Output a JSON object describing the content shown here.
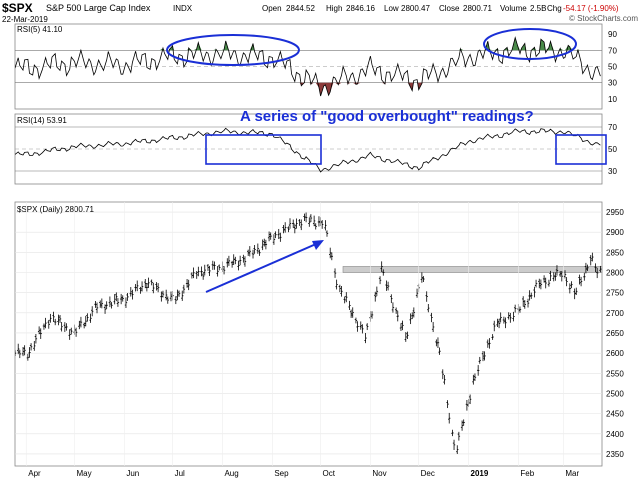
{
  "header": {
    "symbol": "$SPX",
    "name": "S&P 500 Large Cap Index",
    "exchange": "INDX",
    "date": "22-Mar-2019",
    "open_label": "Open",
    "open": "2844.52",
    "high_label": "High",
    "high": "2846.16",
    "low_label": "Low",
    "low": "2800.47",
    "close_label": "Close",
    "close": "2800.71",
    "volume_label": "Volume",
    "volume": "2.5B",
    "chg_label": "Chg",
    "chg": "-54.17 (-1.90%)",
    "watermark": "© StockCharts.com"
  },
  "annotation": "A series of \"good overbought\" readings?",
  "colors": {
    "price_bars": "#000000",
    "rsi_line": "#000000",
    "overbought_fill": "#4a8a4a",
    "oversold_fill": "#8b3a3a",
    "annotation_blue": "#1a2fd6",
    "resistance_band": "#cccccc",
    "grid": "#e3e3e3"
  },
  "chart_data": [
    {
      "type": "line",
      "panel": "RSI(5)",
      "label": "RSI(5)",
      "last_value": "41.10",
      "y_ticks": [
        10,
        30,
        50,
        70,
        90
      ],
      "ylim": [
        0,
        100
      ],
      "reference_lines": [
        30,
        50,
        70
      ],
      "overbought_at": 70,
      "oversold_at": 30,
      "x": [
        "2018-04",
        "2018-05",
        "2018-06",
        "2018-07",
        "2018-08",
        "2018-09",
        "2018-10",
        "2018-11",
        "2018-12",
        "2019-01",
        "2019-02",
        "2019-03",
        "2019-03-22"
      ],
      "values": [
        48,
        55,
        52,
        63,
        66,
        61,
        24,
        47,
        32,
        62,
        71,
        70,
        41
      ]
    },
    {
      "type": "line",
      "panel": "RSI(14)",
      "label": "RSI(14)",
      "last_value": "53.91",
      "y_ticks": [
        30,
        50,
        70
      ],
      "ylim": [
        20,
        80
      ],
      "reference_lines": [
        30,
        50,
        70
      ],
      "x": [
        "2018-04",
        "2018-05",
        "2018-06",
        "2018-07",
        "2018-08",
        "2018-09",
        "2018-10",
        "2018-11",
        "2018-12",
        "2019-01",
        "2019-02",
        "2019-03",
        "2019-03-22"
      ],
      "values": [
        45,
        52,
        55,
        60,
        66,
        64,
        31,
        44,
        33,
        57,
        66,
        66,
        54
      ]
    },
    {
      "type": "ohlc",
      "panel": "price",
      "label": "$SPX (Daily)",
      "last_value": "2800.71",
      "y_ticks": [
        2350,
        2400,
        2450,
        2500,
        2550,
        2600,
        2650,
        2700,
        2750,
        2800,
        2850,
        2900,
        2950
      ],
      "ylim": [
        2330,
        2960
      ],
      "x_ticks": [
        "Apr",
        "May",
        "Jun",
        "Jul",
        "Aug",
        "Sep",
        "Oct",
        "Nov",
        "Dec",
        "2019",
        "Feb",
        "Mar"
      ],
      "resistance_band": [
        2800,
        2815
      ],
      "x": [
        "2018-04-02",
        "2018-04-16",
        "2018-05-01",
        "2018-05-15",
        "2018-06-01",
        "2018-06-15",
        "2018-07-02",
        "2018-07-16",
        "2018-08-01",
        "2018-08-15",
        "2018-09-04",
        "2018-09-20",
        "2018-10-03",
        "2018-10-12",
        "2018-10-29",
        "2018-11-08",
        "2018-11-23",
        "2018-12-03",
        "2018-12-14",
        "2018-12-24",
        "2019-01-04",
        "2019-01-18",
        "2019-02-01",
        "2019-02-15",
        "2019-03-01",
        "2019-03-08",
        "2019-03-18",
        "2019-03-22"
      ],
      "close": [
        2600,
        2690,
        2650,
        2715,
        2735,
        2775,
        2730,
        2800,
        2815,
        2835,
        2895,
        2930,
        2925,
        2765,
        2640,
        2805,
        2635,
        2790,
        2600,
        2350,
        2530,
        2670,
        2705,
        2775,
        2800,
        2745,
        2835,
        2801
      ]
    }
  ],
  "axis_labels": {
    "rsi5": [
      "90",
      "70",
      "50",
      "30",
      "10"
    ],
    "rsi14": [
      "70",
      "50",
      "30"
    ],
    "price": [
      "2950",
      "2900",
      "2850",
      "2800",
      "2750",
      "2700",
      "2650",
      "2600",
      "2550",
      "2500",
      "2450",
      "2400",
      "2350"
    ],
    "months": [
      "Apr",
      "May",
      "Jun",
      "Jul",
      "Aug",
      "Sep",
      "Oct",
      "Nov",
      "Dec",
      "2019",
      "Feb",
      "Mar"
    ]
  }
}
